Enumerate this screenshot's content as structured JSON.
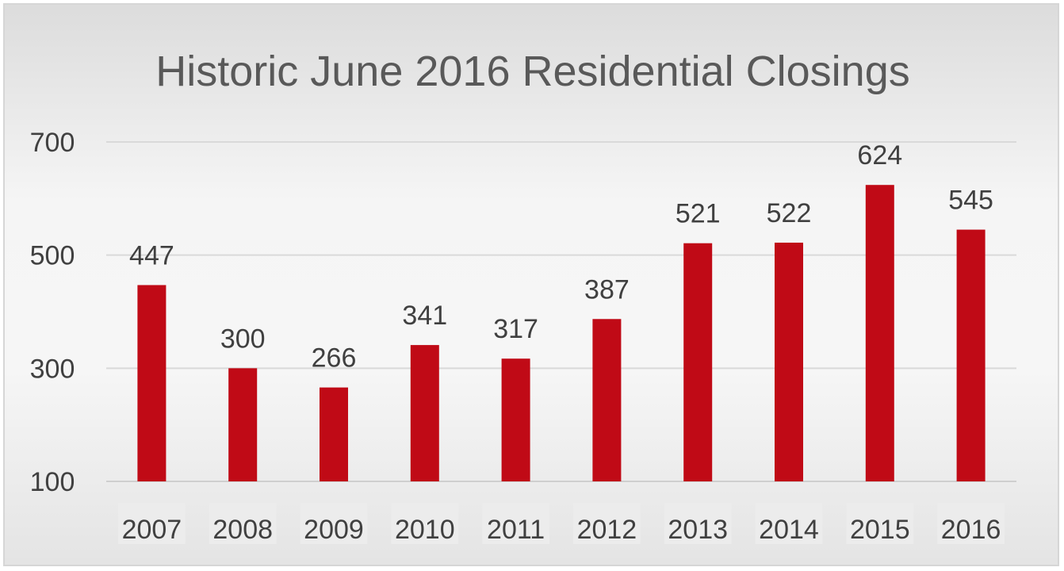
{
  "chart_data": {
    "type": "bar",
    "title": "Historic June 2016 Residential Closings",
    "xlabel": "",
    "ylabel": "",
    "categories": [
      "2007",
      "2008",
      "2009",
      "2010",
      "2011",
      "2012",
      "2013",
      "2014",
      "2015",
      "2016"
    ],
    "values": [
      447,
      300,
      266,
      341,
      317,
      387,
      521,
      522,
      624,
      545
    ],
    "y_ticks": [
      "100",
      "300",
      "500",
      "700"
    ],
    "ylim": [
      100,
      700
    ],
    "grid": true,
    "legend": "none",
    "colors": {
      "bar": "#C00A16",
      "gridline": "#d9d9d9",
      "text": "#404040",
      "title": "#595959"
    }
  }
}
